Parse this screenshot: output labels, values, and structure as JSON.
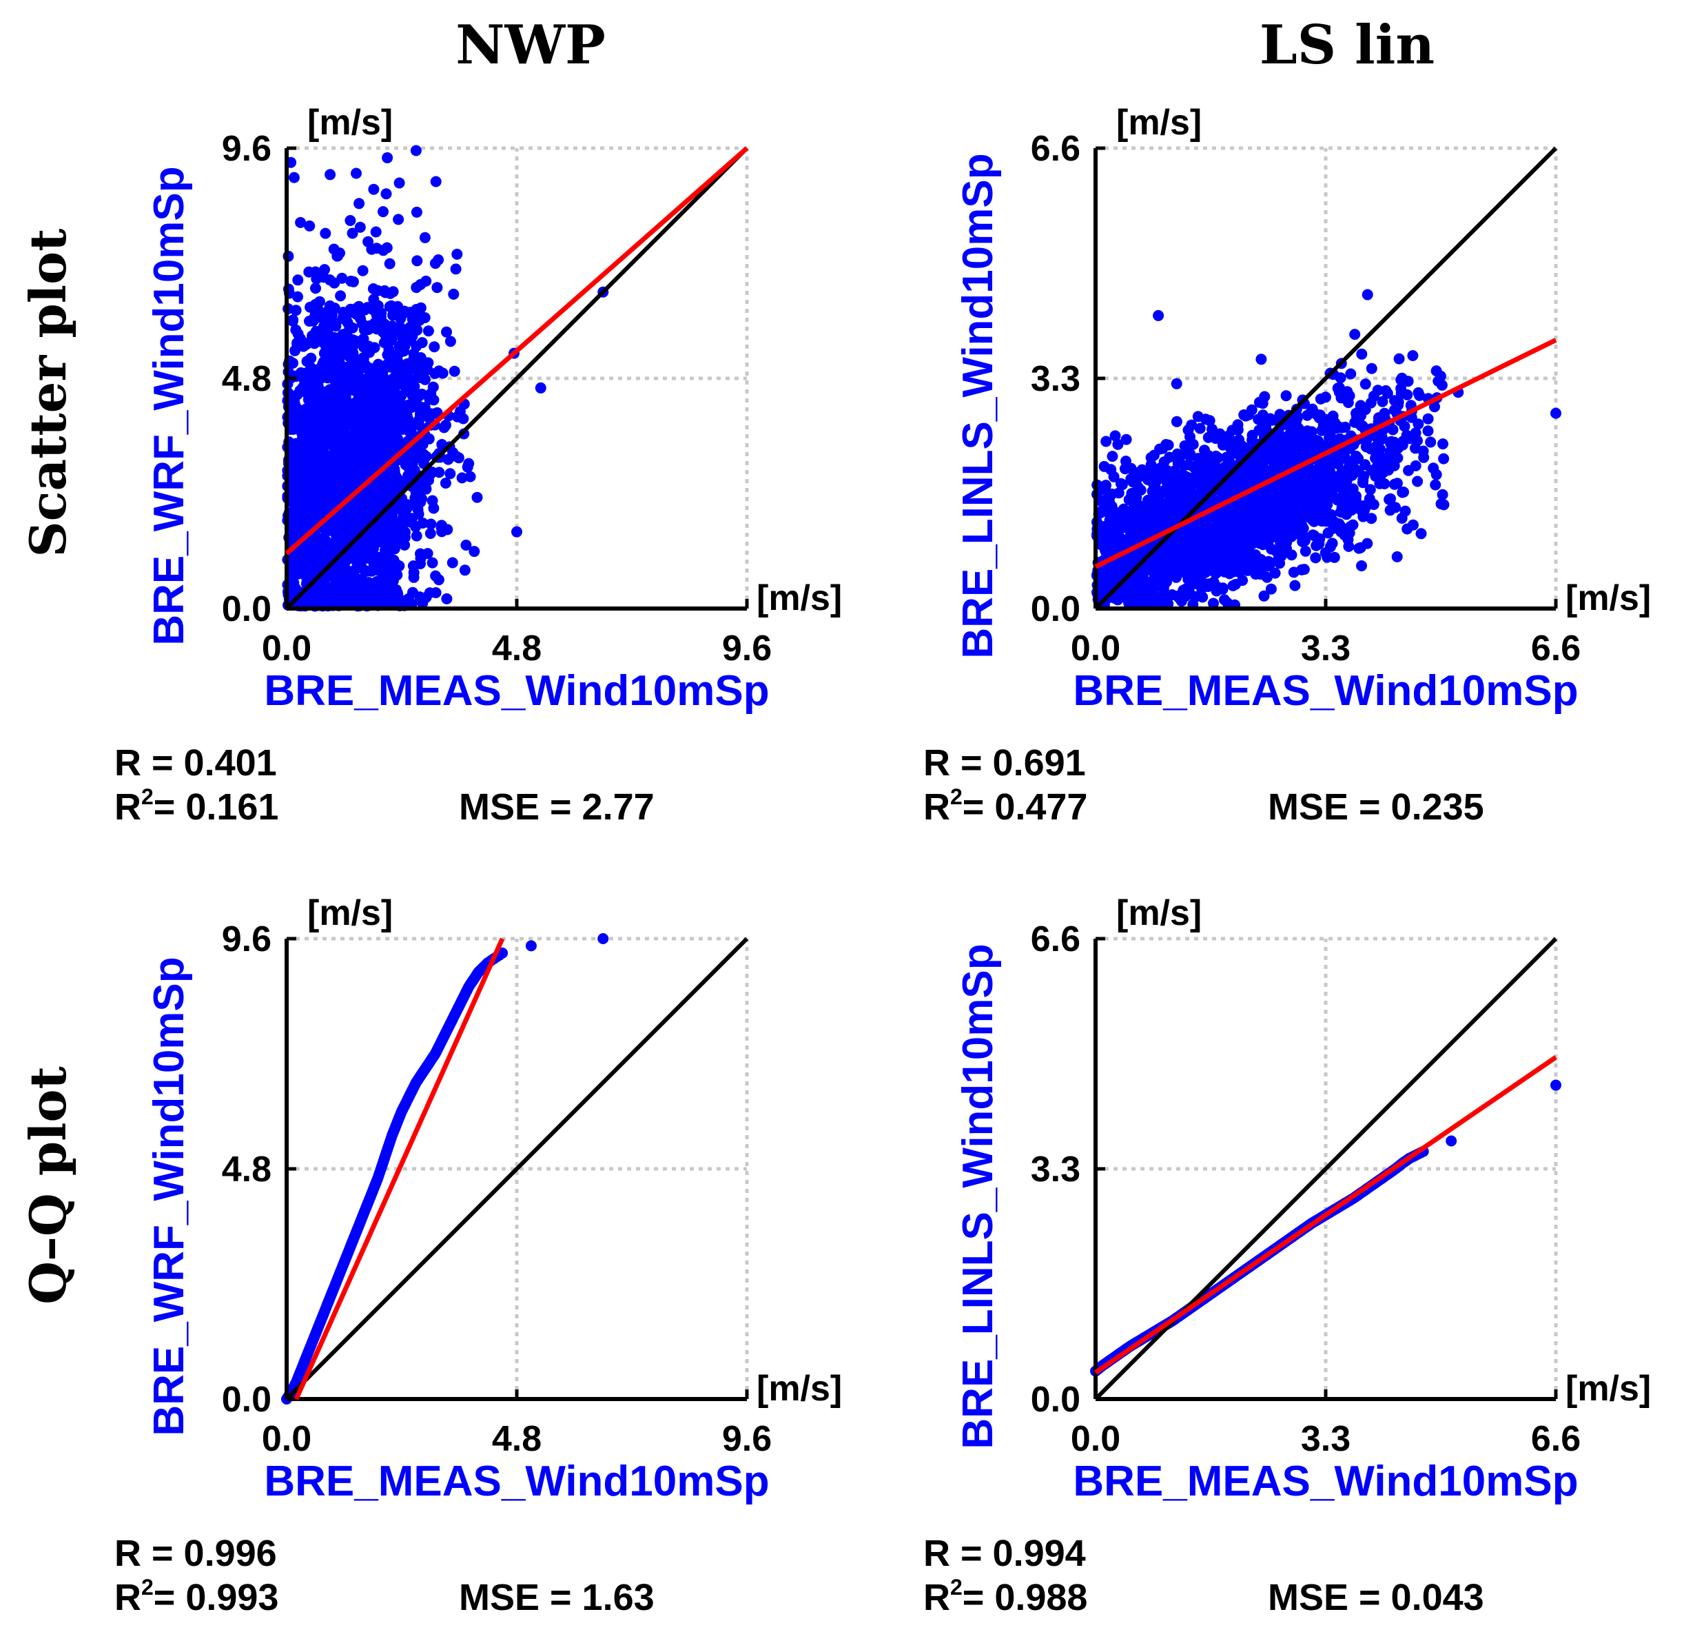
{
  "figure": {
    "column_titles": [
      "NWP",
      "LS lin"
    ],
    "row_titles": [
      "Scatter plot",
      "Q–Q plot"
    ],
    "colors": {
      "points": "#0000ff",
      "fit_line": "#ff0000",
      "identity_line": "#000000",
      "label_text": "#0000ff",
      "grid": "#c8c8c8"
    }
  },
  "chart_data": [
    {
      "type": "scatter",
      "row": "Scatter plot",
      "column": "NWP",
      "xlabel": "BRE_MEAS_Wind10mSp",
      "ylabel": "BRE_WRF_Wind10mSp",
      "x_unit": "[m/s]",
      "y_unit": "[m/s]",
      "xlim": [
        0,
        9.6
      ],
      "ylim": [
        0,
        9.6
      ],
      "xticks": [
        "0.0",
        "4.8",
        "9.6"
      ],
      "yticks": [
        "0.0",
        "4.8",
        "9.6"
      ],
      "grid": true,
      "cloud": {
        "x_center": 1.3,
        "x_spread": 0.9,
        "x_max": 4.9,
        "y_center": 2.6,
        "y_spread": 1.9,
        "y_max": 9.6,
        "n": 2200
      },
      "outliers": [
        [
          6.6,
          6.6
        ],
        [
          5.3,
          4.6
        ],
        [
          4.8,
          1.6
        ],
        [
          2.7,
          9.55
        ],
        [
          2.1,
          9.4
        ]
      ],
      "fit_line": [
        [
          0,
          1.15
        ],
        [
          9.6,
          9.6
        ]
      ],
      "identity_line": [
        [
          0,
          0
        ],
        [
          9.6,
          9.6
        ]
      ],
      "stats": {
        "R_label": "R = 0.401",
        "R2_prefix": "R",
        "R2_sup": "2",
        "R2_value": "= 0.161",
        "MSE_label": "MSE = 2.77"
      }
    },
    {
      "type": "scatter",
      "row": "Scatter plot",
      "column": "LS lin",
      "xlabel": "BRE_MEAS_Wind10mSp",
      "ylabel": "BRE_LINLS_Wind10mSp",
      "x_unit": "[m/s]",
      "y_unit": "[m/s]",
      "xlim": [
        0,
        6.6
      ],
      "ylim": [
        0,
        6.6
      ],
      "xticks": [
        "0.0",
        "3.3",
        "6.6"
      ],
      "yticks": [
        "0.0",
        "3.3",
        "6.6"
      ],
      "grid": true,
      "cloud": {
        "x_center": 1.9,
        "x_spread": 1.3,
        "x_max": 5.0,
        "y_center": 1.2,
        "y_spread": 0.55,
        "y_max": 4.6,
        "slope": 0.38,
        "n": 2200
      },
      "outliers": [
        [
          6.6,
          2.8
        ],
        [
          5.2,
          3.1
        ],
        [
          3.9,
          4.5
        ],
        [
          0.9,
          4.2
        ]
      ],
      "fit_line": [
        [
          0,
          0.6
        ],
        [
          6.6,
          3.85
        ]
      ],
      "identity_line": [
        [
          0,
          0
        ],
        [
          6.6,
          6.6
        ]
      ],
      "stats": {
        "R_label": "R = 0.691",
        "R2_prefix": "R",
        "R2_sup": "2",
        "R2_value": "= 0.477",
        "MSE_label": "MSE = 0.235"
      }
    },
    {
      "type": "scatter",
      "row": "Q–Q plot",
      "column": "NWP",
      "xlabel": "BRE_MEAS_Wind10mSp",
      "ylabel": "BRE_WRF_Wind10mSp",
      "x_unit": "[m/s]",
      "y_unit": "[m/s]",
      "xlim": [
        0,
        9.6
      ],
      "ylim": [
        0,
        9.6
      ],
      "xticks": [
        "0.0",
        "4.8",
        "9.6"
      ],
      "yticks": [
        "0.0",
        "4.8",
        "9.6"
      ],
      "grid": true,
      "qq_points": [
        [
          0,
          0
        ],
        [
          0.1,
          0.15
        ],
        [
          0.2,
          0.35
        ],
        [
          0.3,
          0.6
        ],
        [
          0.4,
          0.85
        ],
        [
          0.5,
          1.1
        ],
        [
          0.6,
          1.35
        ],
        [
          0.7,
          1.6
        ],
        [
          0.8,
          1.85
        ],
        [
          0.9,
          2.1
        ],
        [
          1.0,
          2.35
        ],
        [
          1.1,
          2.6
        ],
        [
          1.2,
          2.85
        ],
        [
          1.3,
          3.1
        ],
        [
          1.4,
          3.35
        ],
        [
          1.5,
          3.6
        ],
        [
          1.6,
          3.85
        ],
        [
          1.7,
          4.1
        ],
        [
          1.8,
          4.35
        ],
        [
          1.9,
          4.6
        ],
        [
          2.0,
          4.9
        ],
        [
          2.1,
          5.2
        ],
        [
          2.2,
          5.5
        ],
        [
          2.3,
          5.75
        ],
        [
          2.4,
          6.0
        ],
        [
          2.5,
          6.2
        ],
        [
          2.6,
          6.4
        ],
        [
          2.7,
          6.6
        ],
        [
          2.8,
          6.75
        ],
        [
          2.9,
          6.9
        ],
        [
          3.0,
          7.05
        ],
        [
          3.1,
          7.2
        ],
        [
          3.2,
          7.4
        ],
        [
          3.3,
          7.6
        ],
        [
          3.4,
          7.8
        ],
        [
          3.5,
          8.0
        ],
        [
          3.6,
          8.2
        ],
        [
          3.7,
          8.4
        ],
        [
          3.8,
          8.6
        ],
        [
          3.9,
          8.75
        ],
        [
          4.0,
          8.9
        ],
        [
          4.1,
          9.0
        ],
        [
          4.2,
          9.1
        ],
        [
          4.5,
          9.3
        ],
        [
          5.1,
          9.45
        ],
        [
          6.6,
          9.6
        ]
      ],
      "fit_line": [
        [
          0.2,
          0
        ],
        [
          4.5,
          9.6
        ]
      ],
      "identity_line": [
        [
          0,
          0
        ],
        [
          9.6,
          9.6
        ]
      ],
      "stats": {
        "R_label": "R = 0.996",
        "R2_prefix": "R",
        "R2_sup": "2",
        "R2_value": "= 0.993",
        "MSE_label": "MSE = 1.63"
      }
    },
    {
      "type": "scatter",
      "row": "Q–Q plot",
      "column": "LS lin",
      "xlabel": "BRE_MEAS_Wind10mSp",
      "ylabel": "BRE_LINLS_Wind10mSp",
      "x_unit": "[m/s]",
      "y_unit": "[m/s]",
      "xlim": [
        0,
        6.6
      ],
      "ylim": [
        0,
        6.6
      ],
      "xticks": [
        "0.0",
        "3.3",
        "6.6"
      ],
      "yticks": [
        "0.0",
        "3.3",
        "6.6"
      ],
      "grid": true,
      "qq_points": [
        [
          0,
          0.4
        ],
        [
          0.1,
          0.48
        ],
        [
          0.2,
          0.55
        ],
        [
          0.3,
          0.62
        ],
        [
          0.4,
          0.69
        ],
        [
          0.5,
          0.76
        ],
        [
          0.6,
          0.82
        ],
        [
          0.7,
          0.88
        ],
        [
          0.8,
          0.94
        ],
        [
          0.9,
          1.0
        ],
        [
          1.0,
          1.06
        ],
        [
          1.1,
          1.12
        ],
        [
          1.2,
          1.19
        ],
        [
          1.3,
          1.26
        ],
        [
          1.4,
          1.33
        ],
        [
          1.5,
          1.4
        ],
        [
          1.6,
          1.47
        ],
        [
          1.7,
          1.54
        ],
        [
          1.8,
          1.61
        ],
        [
          1.9,
          1.68
        ],
        [
          2.0,
          1.75
        ],
        [
          2.1,
          1.82
        ],
        [
          2.2,
          1.89
        ],
        [
          2.3,
          1.96
        ],
        [
          2.4,
          2.03
        ],
        [
          2.5,
          2.1
        ],
        [
          2.6,
          2.17
        ],
        [
          2.7,
          2.24
        ],
        [
          2.8,
          2.31
        ],
        [
          2.9,
          2.38
        ],
        [
          3.0,
          2.45
        ],
        [
          3.1,
          2.52
        ],
        [
          3.2,
          2.58
        ],
        [
          3.3,
          2.64
        ],
        [
          3.4,
          2.7
        ],
        [
          3.5,
          2.76
        ],
        [
          3.6,
          2.82
        ],
        [
          3.7,
          2.88
        ],
        [
          3.8,
          2.95
        ],
        [
          3.9,
          3.02
        ],
        [
          4.0,
          3.09
        ],
        [
          4.1,
          3.16
        ],
        [
          4.2,
          3.23
        ],
        [
          4.3,
          3.3
        ],
        [
          4.4,
          3.38
        ],
        [
          4.5,
          3.45
        ],
        [
          4.7,
          3.55
        ],
        [
          5.1,
          3.7
        ],
        [
          6.6,
          4.5
        ]
      ],
      "fit_line": [
        [
          0,
          0.38
        ],
        [
          6.6,
          4.9
        ]
      ],
      "identity_line": [
        [
          0,
          0
        ],
        [
          6.6,
          6.6
        ]
      ],
      "stats": {
        "R_label": "R = 0.994",
        "R2_prefix": "R",
        "R2_sup": "2",
        "R2_value": "= 0.988",
        "MSE_label": "MSE = 0.043"
      }
    }
  ]
}
